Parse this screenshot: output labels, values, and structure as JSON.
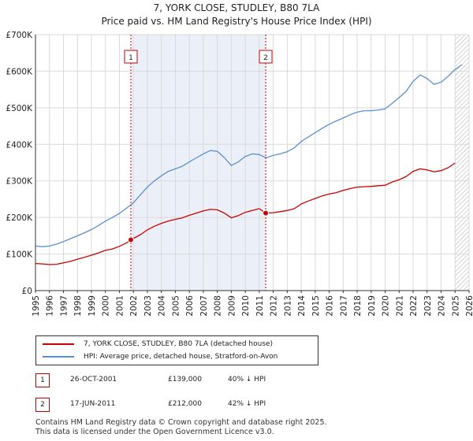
{
  "chart_data": {
    "type": "line",
    "title": "7, YORK CLOSE, STUDLEY, B80 7LA",
    "subtitle": "Price paid vs. HM Land Registry's House Price Index (HPI)",
    "xlim": [
      1995,
      2026
    ],
    "ylim": [
      0,
      700000
    ],
    "x_ticks": [
      "1995",
      "1996",
      "1997",
      "1998",
      "1999",
      "2000",
      "2001",
      "2002",
      "2003",
      "2004",
      "2005",
      "2006",
      "2007",
      "2008",
      "2009",
      "2010",
      "2011",
      "2012",
      "2013",
      "2014",
      "2015",
      "2016",
      "2017",
      "2018",
      "2019",
      "2020",
      "2021",
      "2022",
      "2023",
      "2024",
      "2025",
      "2026"
    ],
    "y_ticks": [
      {
        "value": 0,
        "label": "£0"
      },
      {
        "value": 100000,
        "label": "£100K"
      },
      {
        "value": 200000,
        "label": "£200K"
      },
      {
        "value": 300000,
        "label": "£300K"
      },
      {
        "value": 400000,
        "label": "£400K"
      },
      {
        "value": 500000,
        "label": "£500K"
      },
      {
        "value": 600000,
        "label": "£600K"
      },
      {
        "value": 700000,
        "label": "£700K"
      }
    ],
    "grid": true,
    "shaded_period": [
      2001.82,
      2011.46
    ],
    "projection_start": 2025.0,
    "series": [
      {
        "name": "7, YORK CLOSE, STUDLEY, B80 7LA (detached house)",
        "color": "#cc0000",
        "x": [
          1995.0,
          1995.5,
          1996.0,
          1996.5,
          1997.0,
          1997.5,
          1998.0,
          1998.5,
          1999.0,
          1999.5,
          2000.0,
          2000.5,
          2001.0,
          2001.5,
          2001.82,
          2002.5,
          2003.0,
          2003.5,
          2004.0,
          2004.5,
          2005.0,
          2005.5,
          2006.0,
          2006.5,
          2007.0,
          2007.5,
          2008.0,
          2008.5,
          2009.0,
          2009.5,
          2010.0,
          2010.5,
          2011.0,
          2011.46,
          2012.0,
          2012.5,
          2013.0,
          2013.5,
          2014.0,
          2014.5,
          2015.0,
          2015.5,
          2016.0,
          2016.5,
          2017.0,
          2017.5,
          2018.0,
          2018.5,
          2019.0,
          2019.5,
          2020.0,
          2020.5,
          2021.0,
          2021.5,
          2022.0,
          2022.5,
          2023.0,
          2023.5,
          2024.0,
          2024.5,
          2025.0
        ],
        "values": [
          74000,
          73000,
          71000,
          72000,
          76000,
          80000,
          86000,
          91000,
          97000,
          103000,
          110000,
          114000,
          121000,
          130000,
          139000,
          153000,
          166000,
          176000,
          184000,
          190000,
          195000,
          199000,
          206000,
          212000,
          218000,
          222000,
          221000,
          212000,
          199000,
          205000,
          214000,
          219000,
          224000,
          212000,
          213000,
          216000,
          219000,
          224000,
          237000,
          245000,
          252000,
          259000,
          264000,
          268000,
          274000,
          279000,
          283000,
          284000,
          285000,
          287000,
          288000,
          297000,
          303000,
          312000,
          326000,
          333000,
          330000,
          325000,
          328000,
          336000,
          349000
        ]
      },
      {
        "name": "HPI: Average price, detached house, Stratford-on-Avon",
        "color": "#5b8fd1",
        "x": [
          1995.0,
          1995.5,
          1996.0,
          1996.5,
          1997.0,
          1997.5,
          1998.0,
          1998.5,
          1999.0,
          1999.5,
          2000.0,
          2000.5,
          2001.0,
          2001.5,
          2002.0,
          2002.5,
          2003.0,
          2003.5,
          2004.0,
          2004.5,
          2005.0,
          2005.5,
          2006.0,
          2006.5,
          2007.0,
          2007.5,
          2008.0,
          2008.5,
          2009.0,
          2009.5,
          2010.0,
          2010.5,
          2011.0,
          2011.5,
          2012.0,
          2012.5,
          2013.0,
          2013.5,
          2014.0,
          2014.5,
          2015.0,
          2015.5,
          2016.0,
          2016.5,
          2017.0,
          2017.5,
          2018.0,
          2018.5,
          2019.0,
          2019.5,
          2020.0,
          2020.5,
          2021.0,
          2021.5,
          2022.0,
          2022.5,
          2023.0,
          2023.5,
          2024.0,
          2024.5,
          2025.0,
          2025.5
        ],
        "values": [
          122000,
          120000,
          122000,
          127000,
          134000,
          142000,
          150000,
          158000,
          167000,
          178000,
          190000,
          200000,
          211000,
          225000,
          240000,
          262000,
          283000,
          300000,
          314000,
          326000,
          333000,
          340000,
          352000,
          363000,
          374000,
          383000,
          381000,
          364000,
          342000,
          352000,
          367000,
          374000,
          372000,
          363000,
          370000,
          374000,
          380000,
          390000,
          408000,
          420000,
          432000,
          444000,
          455000,
          464000,
          472000,
          481000,
          488000,
          492000,
          492000,
          494000,
          497000,
          512000,
          528000,
          545000,
          572000,
          590000,
          580000,
          564000,
          570000,
          586000,
          605000,
          618000
        ]
      }
    ],
    "annotations": [
      {
        "label": "1",
        "x": 2001.82,
        "value": 139000
      },
      {
        "label": "2",
        "x": 2011.46,
        "value": 212000
      }
    ]
  },
  "legend": {
    "property_label": "7, YORK CLOSE, STUDLEY, B80 7LA (detached house)",
    "hpi_label": "HPI: Average price, detached house, Stratford-on-Avon"
  },
  "sales": [
    {
      "num": "1",
      "date": "26-OCT-2001",
      "price": "£139,000",
      "hpi_diff": "40% ↓ HPI"
    },
    {
      "num": "2",
      "date": "17-JUN-2011",
      "price": "£212,000",
      "hpi_diff": "42% ↓ HPI"
    }
  ],
  "footer": {
    "line1": "Contains HM Land Registry data © Crown copyright and database right 2025.",
    "line2": "This data is licensed under the Open Government Licence v3.0."
  }
}
